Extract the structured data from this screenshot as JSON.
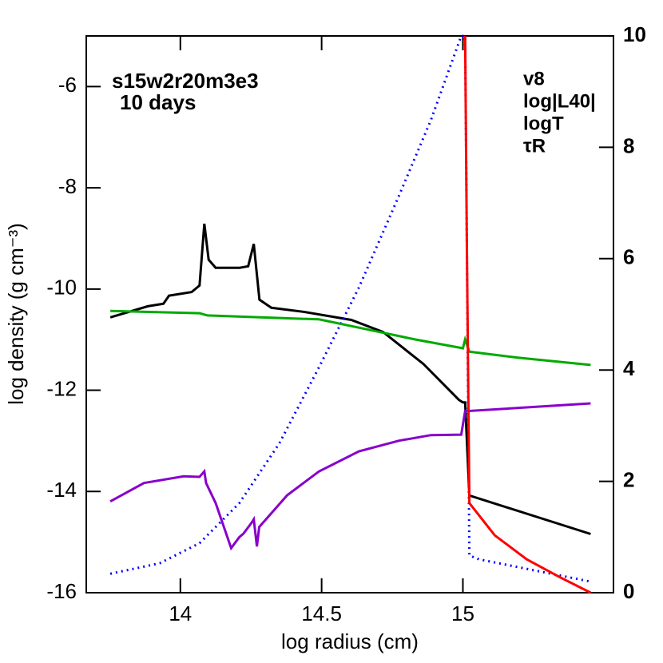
{
  "chart_data": {
    "type": "line",
    "annotations": [
      "s15w2r20m3e3",
      "10 days"
    ],
    "xlabel": "log radius (cm)",
    "ylabel": "log density (g cm⁻³)",
    "xlim": [
      13.667,
      15.533
    ],
    "xticks": [
      14,
      14.5,
      15
    ],
    "ylim": [
      -16,
      -5
    ],
    "yticks": [
      -16,
      -14,
      -12,
      -10,
      -8,
      -6
    ],
    "y2lim": [
      0,
      10
    ],
    "y2ticks": [
      0,
      2,
      4,
      6,
      8,
      10
    ],
    "legend": "upper right",
    "series": [
      {
        "color": "#000000",
        "linestyle": "solid",
        "x": [
          13.752,
          13.885,
          13.94,
          13.96,
          14.04,
          14.068,
          14.085,
          14.1,
          14.125,
          14.21,
          14.24,
          14.26,
          14.28,
          14.322,
          14.435,
          14.605,
          14.718,
          14.86,
          14.986,
          15.0,
          15.008,
          15.023,
          15.452
        ],
        "values": [
          -10.56,
          -10.34,
          -10.29,
          -10.13,
          -10.06,
          -9.93,
          -8.71,
          -9.42,
          -9.58,
          -9.58,
          -9.55,
          -9.11,
          -10.21,
          -10.37,
          -10.45,
          -10.61,
          -10.85,
          -11.48,
          -12.19,
          -12.24,
          -12.24,
          -14.08,
          -14.84
        ]
      },
      {
        "name": "v8",
        "color": "#0000ff",
        "linestyle": "dotted",
        "axis": "y2",
        "x": [
          13.752,
          13.927,
          14.068,
          14.209,
          14.35,
          14.491,
          14.632,
          14.774,
          14.887,
          14.994,
          15.008,
          15.023,
          15.057,
          15.452
        ],
        "values": [
          0.34,
          0.53,
          0.89,
          1.61,
          2.68,
          4.05,
          5.48,
          7.13,
          8.49,
          10.0,
          10.0,
          0.67,
          0.6,
          0.2
        ]
      },
      {
        "name": "log|L40|",
        "color": "#8800cc",
        "linestyle": "solid",
        "axis": "y2",
        "x": [
          13.752,
          13.871,
          14.012,
          14.068,
          14.085,
          14.091,
          14.125,
          14.18,
          14.209,
          14.223,
          14.251,
          14.26,
          14.271,
          14.279,
          14.378,
          14.491,
          14.632,
          14.774,
          14.887,
          14.994,
          15.008,
          15.452
        ],
        "values": [
          1.64,
          1.97,
          2.09,
          2.08,
          2.18,
          1.97,
          1.61,
          0.8,
          1.0,
          1.06,
          1.25,
          1.32,
          0.83,
          1.18,
          1.75,
          2.18,
          2.54,
          2.73,
          2.83,
          2.84,
          3.26,
          3.4
        ]
      },
      {
        "name": "logT",
        "color": "#00aa00",
        "linestyle": "solid",
        "axis": "y2",
        "x": [
          13.752,
          14.068,
          14.096,
          14.491,
          14.632,
          14.83,
          15.0,
          15.008,
          15.023,
          15.198,
          15.452
        ],
        "values": [
          5.06,
          5.02,
          4.98,
          4.91,
          4.76,
          4.55,
          4.39,
          4.55,
          4.33,
          4.22,
          4.09
        ]
      },
      {
        "name": "τR",
        "color": "#ff0000",
        "linestyle": "solid",
        "axis": "y2",
        "x": [
          15.008,
          15.014,
          15.023,
          15.113,
          15.226,
          15.339,
          15.452
        ],
        "values": [
          10.0,
          6.34,
          1.61,
          1.03,
          0.6,
          0.29,
          0.0
        ]
      }
    ]
  }
}
